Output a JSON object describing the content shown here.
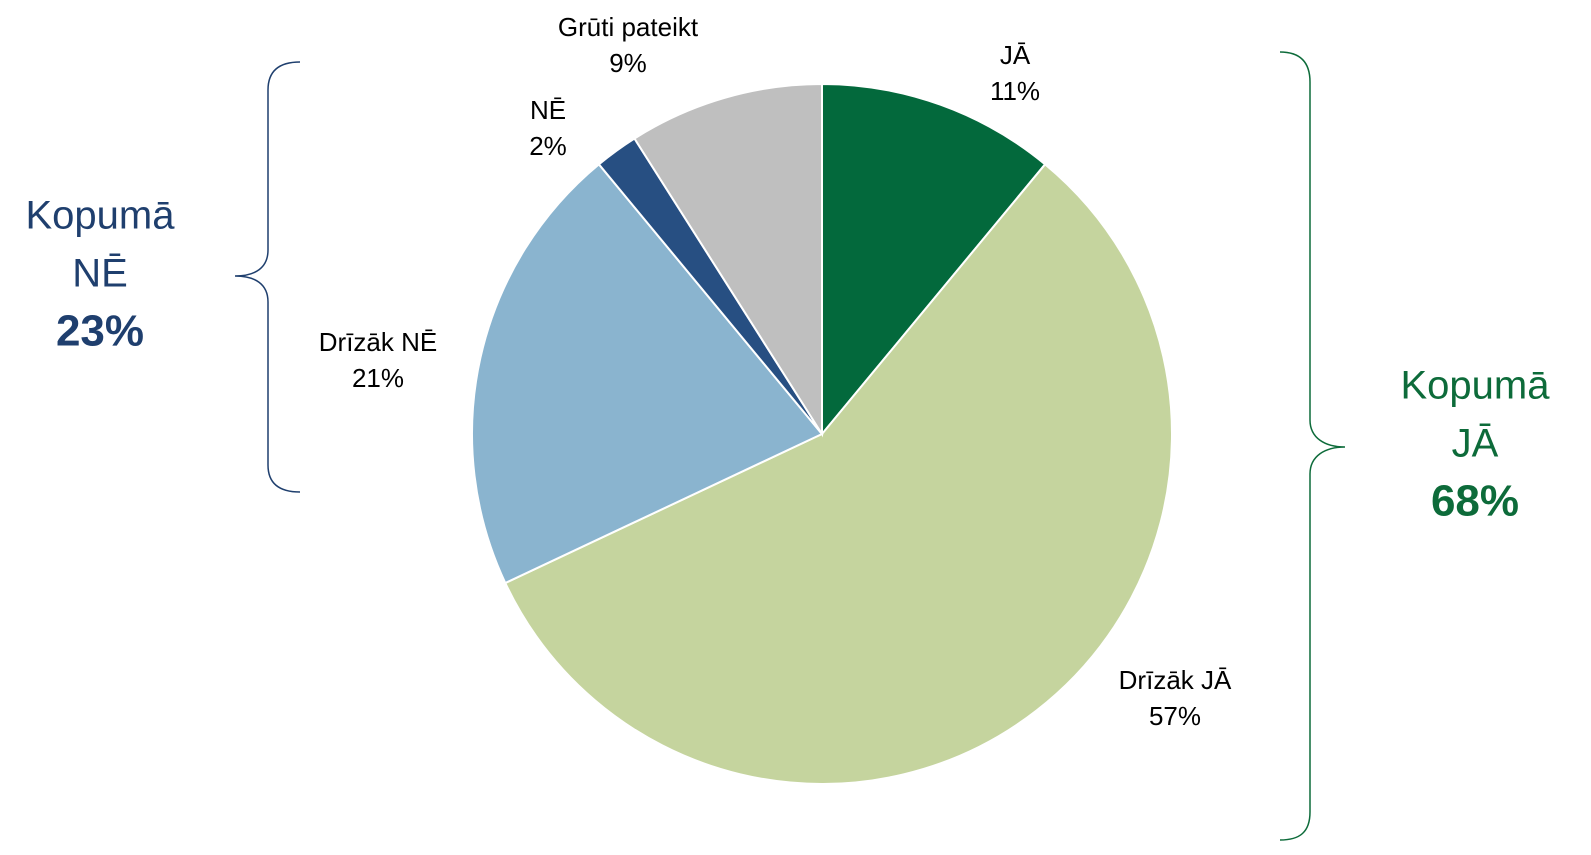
{
  "chart_data": {
    "type": "pie",
    "categories": [
      "JĀ",
      "Drīzāk JĀ",
      "Drīzāk NĒ",
      "NĒ",
      "Grūti pateikt"
    ],
    "values": [
      11,
      57,
      21,
      2,
      9
    ],
    "value_labels": [
      "11%",
      "57%",
      "21%",
      "2%",
      "9%"
    ],
    "colors": [
      "#03693c",
      "#c5d49e",
      "#8ab4cf",
      "#274f82",
      "#bfbfbf"
    ],
    "annotations": [
      {
        "lines": [
          "Kopumā",
          "NĒ"
        ],
        "total": "23%",
        "color": "#1f3f6e"
      },
      {
        "lines": [
          "Kopumā",
          "JĀ"
        ],
        "total": "68%",
        "color": "#0d6b3a"
      }
    ]
  }
}
